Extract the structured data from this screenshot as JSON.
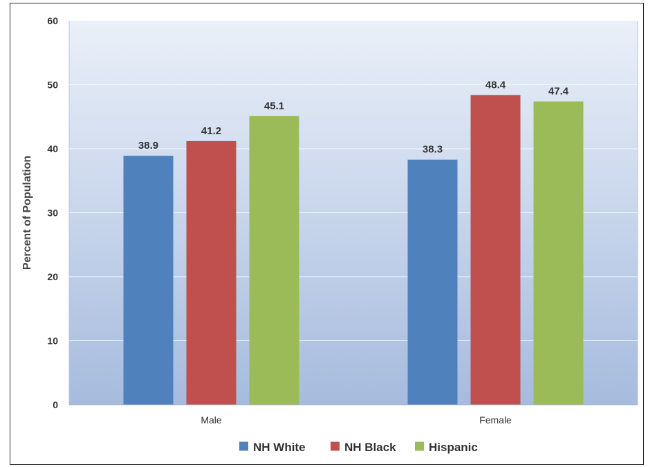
{
  "chart_data": {
    "type": "bar",
    "title": "",
    "xlabel": "",
    "ylabel": "Percent of Population",
    "categories": [
      "Male",
      "Female"
    ],
    "series": [
      {
        "name": "NH White",
        "values": [
          38.9,
          38.3
        ],
        "color": "#4f81bd"
      },
      {
        "name": "NH Black",
        "values": [
          41.2,
          48.4
        ],
        "color": "#c0504d"
      },
      {
        "name": "Hispanic",
        "values": [
          45.1,
          47.4
        ],
        "color": "#9bbb59"
      }
    ],
    "ylim": [
      0,
      60
    ],
    "yticks": [
      0,
      10,
      20,
      30,
      40,
      50,
      60
    ],
    "grid": true,
    "legend": "bottom-center",
    "data_labels": true,
    "plot_background": "gradient light-blue"
  }
}
